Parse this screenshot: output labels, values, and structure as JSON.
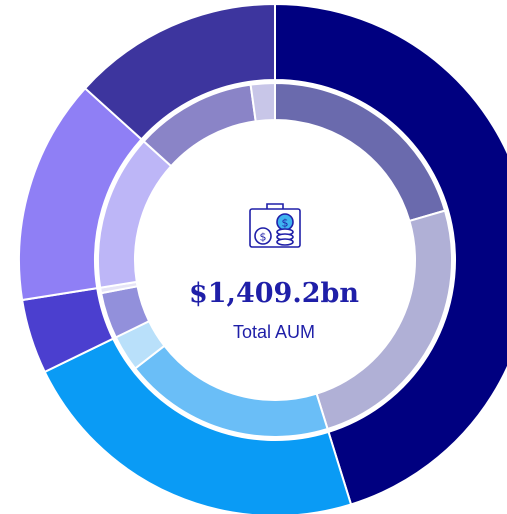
{
  "chart_data": {
    "type": "donut",
    "center_value": "$1,409.2bn",
    "center_label": "Total AUM",
    "rings": [
      {
        "values": [
          45.2,
          22.6,
          4.7,
          14.2,
          13.3
        ],
        "colors": [
          "#000080",
          "#0a9bf5",
          "#4b3fcf",
          "#8f7ff5",
          "#3d359e"
        ]
      },
      {
        "values": [
          20.5,
          24.7,
          19.3,
          3.3,
          4.2,
          0.5,
          14.2,
          11.1,
          2.2
        ],
        "colors": [
          "#6a6aad",
          "#b0b0d6",
          "#6abef7",
          "#b9e0fa",
          "#9290db",
          "#e6e4f7",
          "#bdb6f7",
          "#8a84c7",
          "#c8c6e8"
        ]
      }
    ]
  }
}
